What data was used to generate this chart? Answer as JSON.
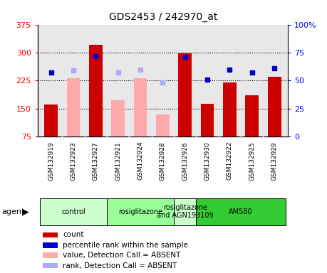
{
  "title": "GDS2453 / 242970_at",
  "samples": [
    "GSM132919",
    "GSM132923",
    "GSM132927",
    "GSM132921",
    "GSM132924",
    "GSM132928",
    "GSM132926",
    "GSM132930",
    "GSM132922",
    "GSM132925",
    "GSM132929"
  ],
  "bar_values": [
    160,
    null,
    320,
    null,
    null,
    null,
    297,
    163,
    220,
    185,
    235
  ],
  "bar_absent_values": [
    null,
    232,
    null,
    172,
    232,
    135,
    null,
    null,
    null,
    null,
    null
  ],
  "rank_present": [
    57,
    null,
    72,
    null,
    null,
    null,
    71,
    51,
    60,
    57,
    61
  ],
  "rank_absent": [
    null,
    59,
    null,
    57,
    60,
    48,
    null,
    null,
    null,
    null,
    null
  ],
  "ylim_left": [
    75,
    375
  ],
  "ylim_right": [
    0,
    100
  ],
  "yticks_left": [
    75,
    150,
    225,
    300,
    375
  ],
  "yticks_right": [
    0,
    25,
    50,
    75,
    100
  ],
  "groups": [
    {
      "label": "control",
      "start": 0,
      "end": 3,
      "color": "#ccffcc"
    },
    {
      "label": "rosiglitazone",
      "start": 3,
      "end": 6,
      "color": "#99ff99"
    },
    {
      "label": "rosiglitazone\nand AGN193109",
      "start": 6,
      "end": 7,
      "color": "#ccffcc"
    },
    {
      "label": "AM580",
      "start": 7,
      "end": 11,
      "color": "#33cc33"
    }
  ],
  "bar_color_present": "#cc0000",
  "bar_color_absent": "#ffaaaa",
  "rank_color_present": "#0000cc",
  "rank_color_absent": "#aaaaff",
  "plot_bg": "#e8e8e8",
  "xtick_bg": "#c8c8c8",
  "grid_linestyle": ":",
  "grid_color": "black",
  "grid_linewidth": 0.8
}
